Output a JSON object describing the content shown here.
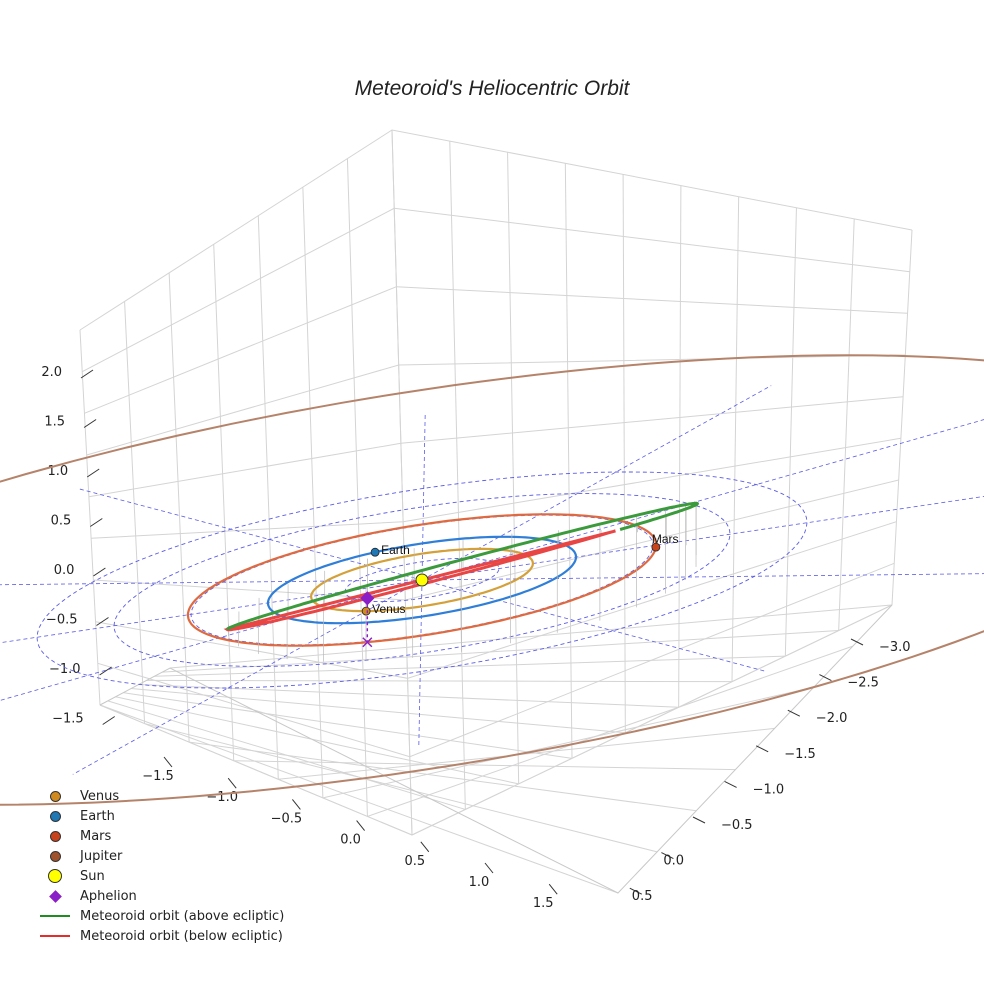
{
  "chart_data": {
    "type": "3d-line",
    "title": "Meteoroid's Heliocentric Orbit",
    "axes": {
      "x": {
        "ticks": [
          "−1.5",
          "−1.0",
          "−0.5",
          "0.0",
          "0.5",
          "1.0",
          "1.5"
        ],
        "range": [
          -1.7,
          1.7
        ]
      },
      "y": {
        "ticks": [
          "−3.0",
          "−2.5",
          "−2.0",
          "−1.5",
          "−1.0",
          "−0.5",
          "0.0",
          "0.5"
        ],
        "range": [
          -3.2,
          0.7
        ]
      },
      "z": {
        "ticks": [
          "−1.5",
          "−1.0",
          "−0.5",
          "0.0",
          "0.5",
          "1.0",
          "1.5",
          "2.0"
        ],
        "range": [
          -1.7,
          2.2
        ]
      }
    },
    "planets": [
      {
        "name": "Venus",
        "a_au": 0.72,
        "color": "#d4a039",
        "marker_color": "#d18a1d",
        "label_angle_deg": 0
      },
      {
        "name": "Earth",
        "a_au": 1.0,
        "color": "#2f7ed8",
        "marker_color": "#1f77b4",
        "label_angle_deg": 228
      },
      {
        "name": "Mars",
        "a_au": 1.52,
        "color": "#e06a40",
        "marker_color": "#c8421c",
        "label_angle_deg": 118
      },
      {
        "name": "Jupiter",
        "a_au": 5.2,
        "color": "#b5836a",
        "marker_color": "#a0522d"
      }
    ],
    "reference_circles_au": [
      0.5,
      1.0,
      1.5,
      2.0,
      2.5
    ],
    "meteoroid": {
      "perihelion_au": 0.97,
      "aphelion_au": 2.4,
      "aphelion_height_au": 1.1,
      "above_color": "#3b9a3b",
      "below_color": "#e84545"
    },
    "aphelion_color": "#8a1fc8",
    "sun_color": "#ffff00",
    "legend": [
      {
        "label": "Venus",
        "kind": "dot",
        "color": "#d18a1d"
      },
      {
        "label": "Earth",
        "kind": "dot",
        "color": "#1f77b4"
      },
      {
        "label": "Mars",
        "kind": "dot",
        "color": "#c8421c"
      },
      {
        "label": "Jupiter",
        "kind": "dot",
        "color": "#a0522d"
      },
      {
        "label": "Sun",
        "kind": "sun",
        "color": "#ffff00"
      },
      {
        "label": "Aphelion",
        "kind": "diamond",
        "color": "#8a1fc8"
      },
      {
        "label": "Meteoroid orbit (above ecliptic)",
        "kind": "line",
        "color": "#1e8c1e"
      },
      {
        "label": "Meteoroid orbit (below ecliptic)",
        "kind": "line",
        "color": "#e62b2b"
      }
    ]
  }
}
